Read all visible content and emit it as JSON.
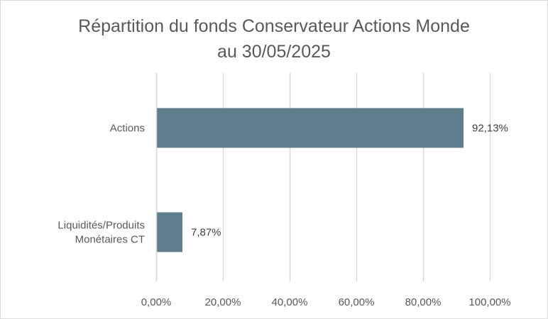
{
  "chart_data": {
    "type": "bar",
    "orientation": "horizontal",
    "title": "Répartition du fonds Conservateur Actions Monde au 30/05/2025",
    "title_lines": [
      "Répartition du fonds Conservateur Actions Monde",
      "au 30/05/2025"
    ],
    "categories": [
      [
        "Actions"
      ],
      [
        "Liquidités/Produits",
        "Monétaires CT"
      ]
    ],
    "values": [
      92.13,
      7.87
    ],
    "data_labels": [
      "92,13%",
      "7,87%"
    ],
    "xlim": [
      0,
      100
    ],
    "x_ticks": [
      0,
      20,
      40,
      60,
      80,
      100
    ],
    "x_tick_labels": [
      "0,00%",
      "20,00%",
      "40,00%",
      "60,00%",
      "80,00%",
      "100,00%"
    ],
    "grid": "vertical",
    "legend": "none",
    "bar_color": "#5d7e8a",
    "grid_color": "#d9d9d9"
  }
}
